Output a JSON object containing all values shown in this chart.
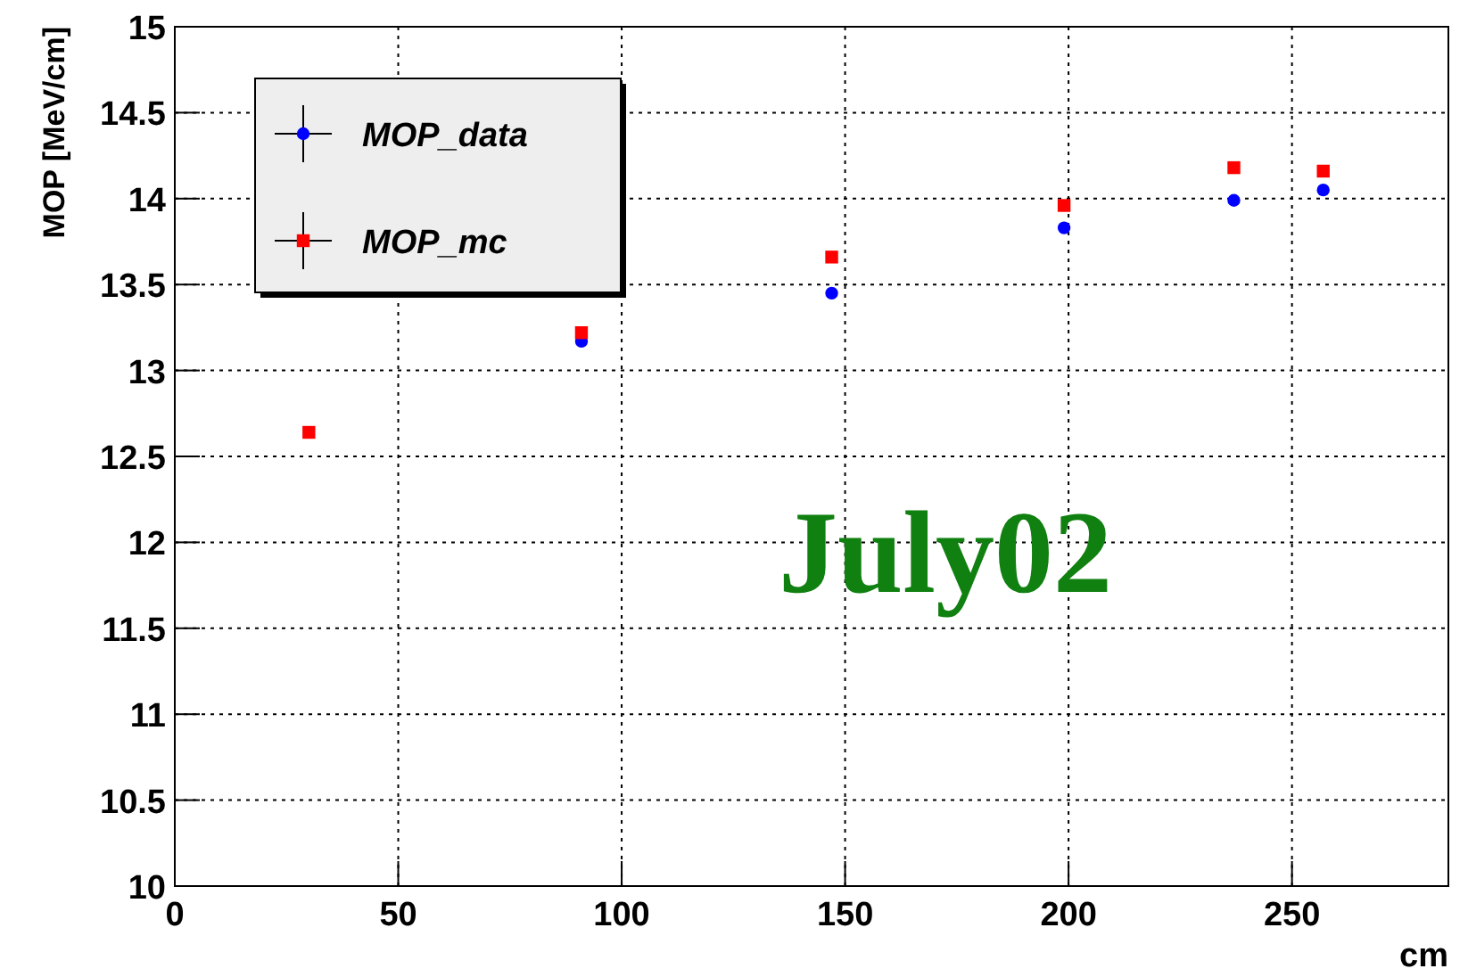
{
  "chart_data": {
    "type": "scatter",
    "xlabel": "cm",
    "ylabel": "MOP [MeV/cm]",
    "xlim": [
      0,
      285
    ],
    "ylim": [
      10,
      15
    ],
    "xticks": [
      0,
      50,
      100,
      150,
      200,
      250
    ],
    "yticks": [
      10,
      10.5,
      11,
      11.5,
      12,
      12.5,
      13,
      13.5,
      14,
      14.5,
      15
    ],
    "grid": true,
    "legend": "top left",
    "series": [
      {
        "name": "MOP_data",
        "color": "#0000ff",
        "marker": "circle",
        "x": [
          91,
          147,
          199,
          237,
          257
        ],
        "values": [
          13.17,
          13.45,
          13.83,
          13.99,
          14.05
        ]
      },
      {
        "name": "MOP_mc",
        "color": "#ff0000",
        "marker": "square",
        "x": [
          30,
          91,
          147,
          199,
          237,
          257
        ],
        "values": [
          12.64,
          13.22,
          13.66,
          13.96,
          14.18,
          14.16
        ]
      }
    ],
    "annotations": [
      "July02"
    ]
  }
}
